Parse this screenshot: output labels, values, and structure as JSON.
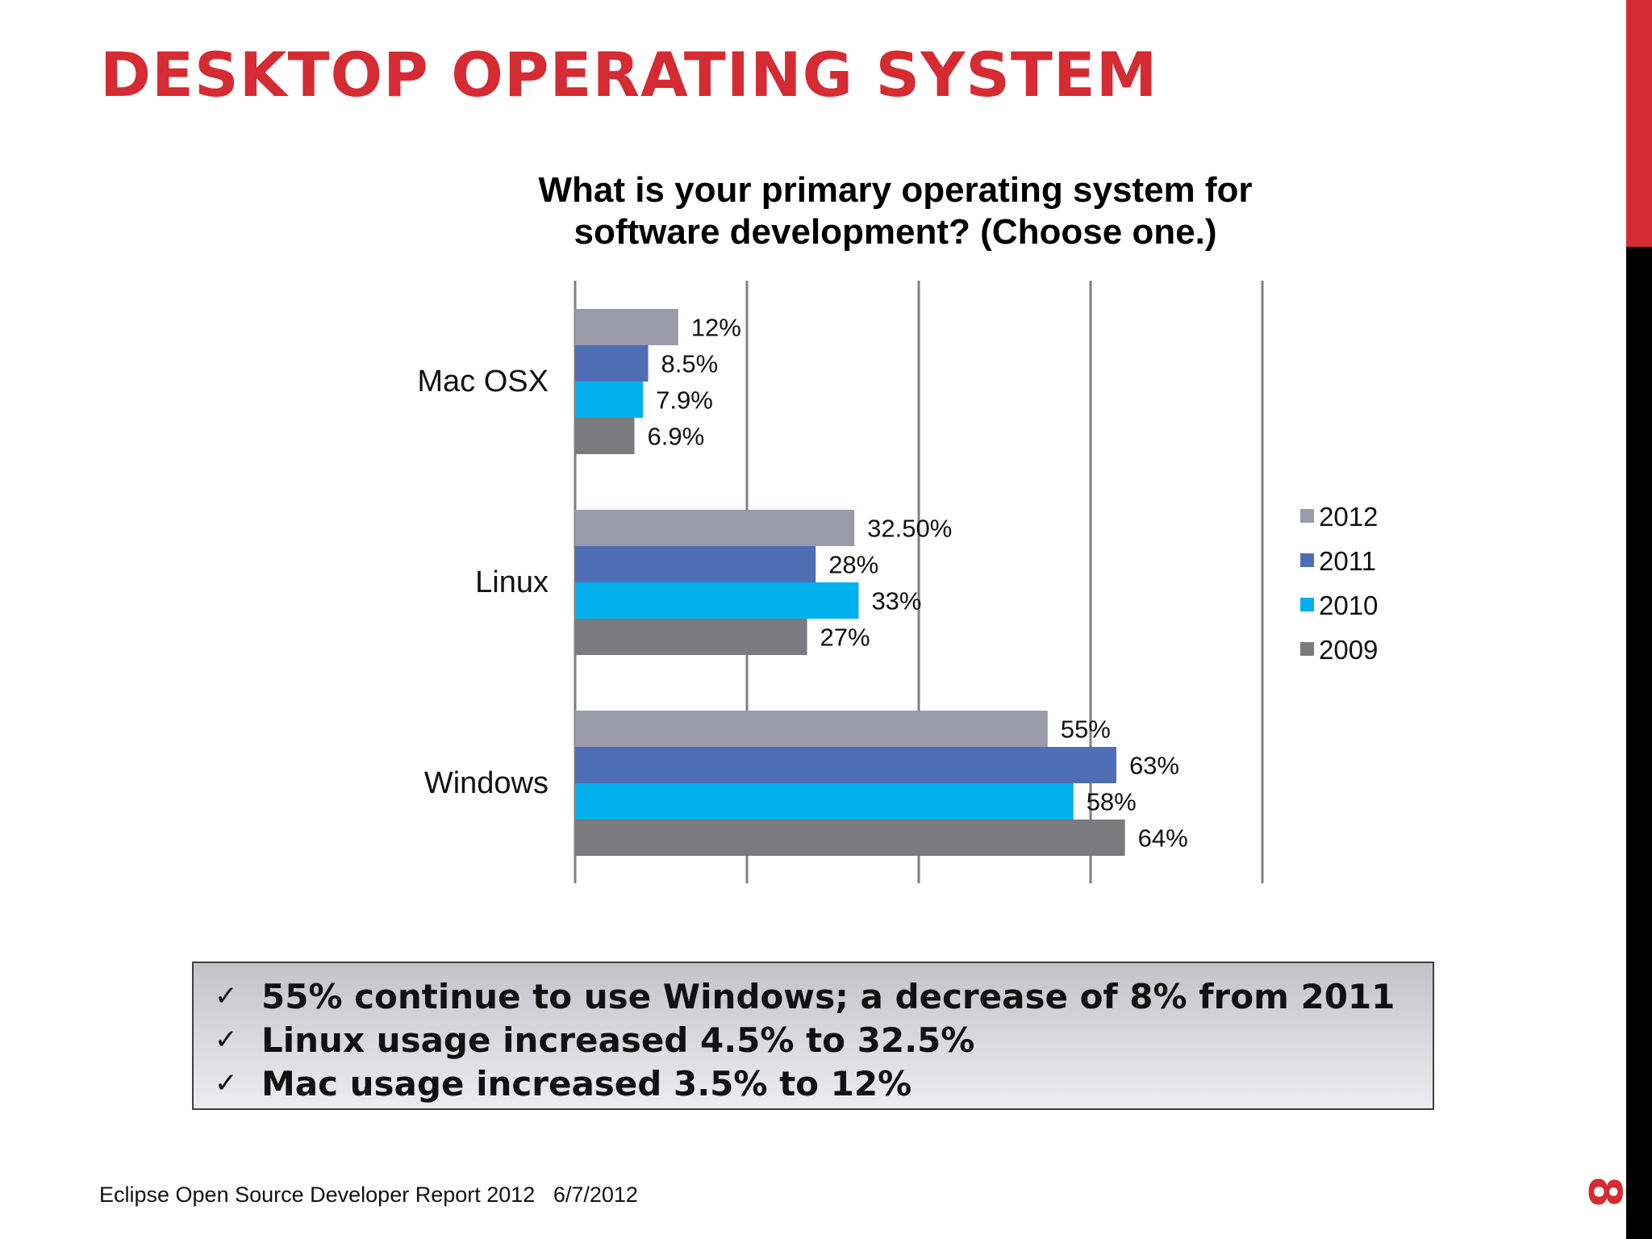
{
  "slide": {
    "title": "DESKTOP OPERATING SYSTEM",
    "page_number": "8",
    "footer": "Eclipse Open Source Developer Report 2012   6/7/2012"
  },
  "summary": [
    "55% continue to use Windows; a decrease of 8% from 2011",
    "Linux usage increased 4.5% to 32.5%",
    "Mac usage increased 3.5% to 12%"
  ],
  "icons": {
    "bullet": "check-icon",
    "check_glyph": "✓"
  },
  "chart_data": {
    "type": "bar",
    "orientation": "horizontal",
    "title": "What is your primary operating system for software development? (Choose one.)",
    "title_lines": [
      "What is your primary operating system for",
      "software development? (Choose one.)"
    ],
    "categories": [
      "Mac OSX",
      "Linux",
      "Windows"
    ],
    "series": [
      {
        "name": "2012",
        "color": "#9a9aab",
        "values": [
          12,
          32.5,
          55
        ],
        "labels": [
          "12%",
          "32.50%",
          "55%"
        ]
      },
      {
        "name": "2011",
        "color": "#4f6db5",
        "values": [
          8.5,
          28,
          63
        ],
        "labels": [
          "8.5%",
          "28%",
          "63%"
        ]
      },
      {
        "name": "2010",
        "color": "#00b0ec",
        "values": [
          7.9,
          33,
          58
        ],
        "labels": [
          "7.9%",
          "33%",
          "58%"
        ]
      },
      {
        "name": "2009",
        "color": "#7b7a7c",
        "values": [
          6.9,
          27,
          64
        ],
        "labels": [
          "6.9%",
          "27%",
          "64%"
        ]
      }
    ],
    "xlim": [
      0,
      80
    ],
    "gridlines_x": [
      0,
      20,
      40,
      60,
      80
    ],
    "grid": true,
    "legend": "right",
    "xlabel": "",
    "ylabel": ""
  }
}
